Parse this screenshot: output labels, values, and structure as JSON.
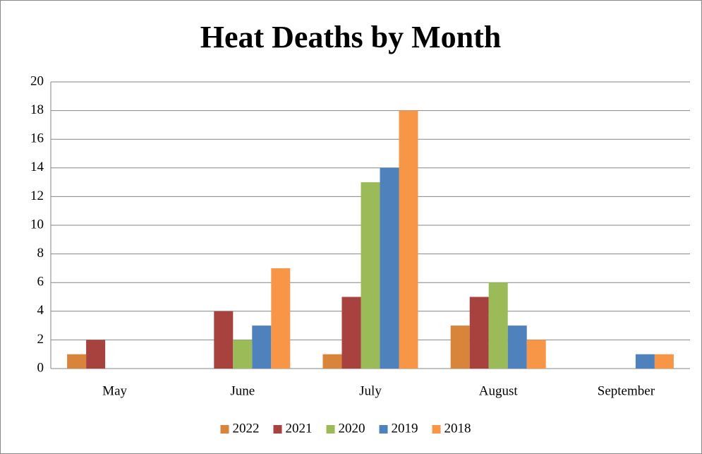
{
  "chart_data": {
    "type": "bar",
    "title": "Heat Deaths by Month",
    "categories": [
      "May",
      "June",
      "July",
      "August",
      "September"
    ],
    "series": [
      {
        "name": "2022",
        "color": "#d9843b",
        "values": [
          1,
          0,
          1,
          3,
          0
        ]
      },
      {
        "name": "2021",
        "color": "#a8423f",
        "values": [
          2,
          4,
          5,
          5,
          0
        ]
      },
      {
        "name": "2020",
        "color": "#9bbb59",
        "values": [
          0,
          2,
          13,
          6,
          0
        ]
      },
      {
        "name": "2019",
        "color": "#4f81bd",
        "values": [
          0,
          3,
          14,
          3,
          1
        ]
      },
      {
        "name": "2018",
        "color": "#f79646",
        "values": [
          0,
          7,
          18,
          2,
          1
        ]
      }
    ],
    "ylim": [
      0,
      20
    ],
    "yticks": [
      0,
      2,
      4,
      6,
      8,
      10,
      12,
      14,
      16,
      18,
      20
    ],
    "grid": true,
    "legend": "bottom"
  }
}
